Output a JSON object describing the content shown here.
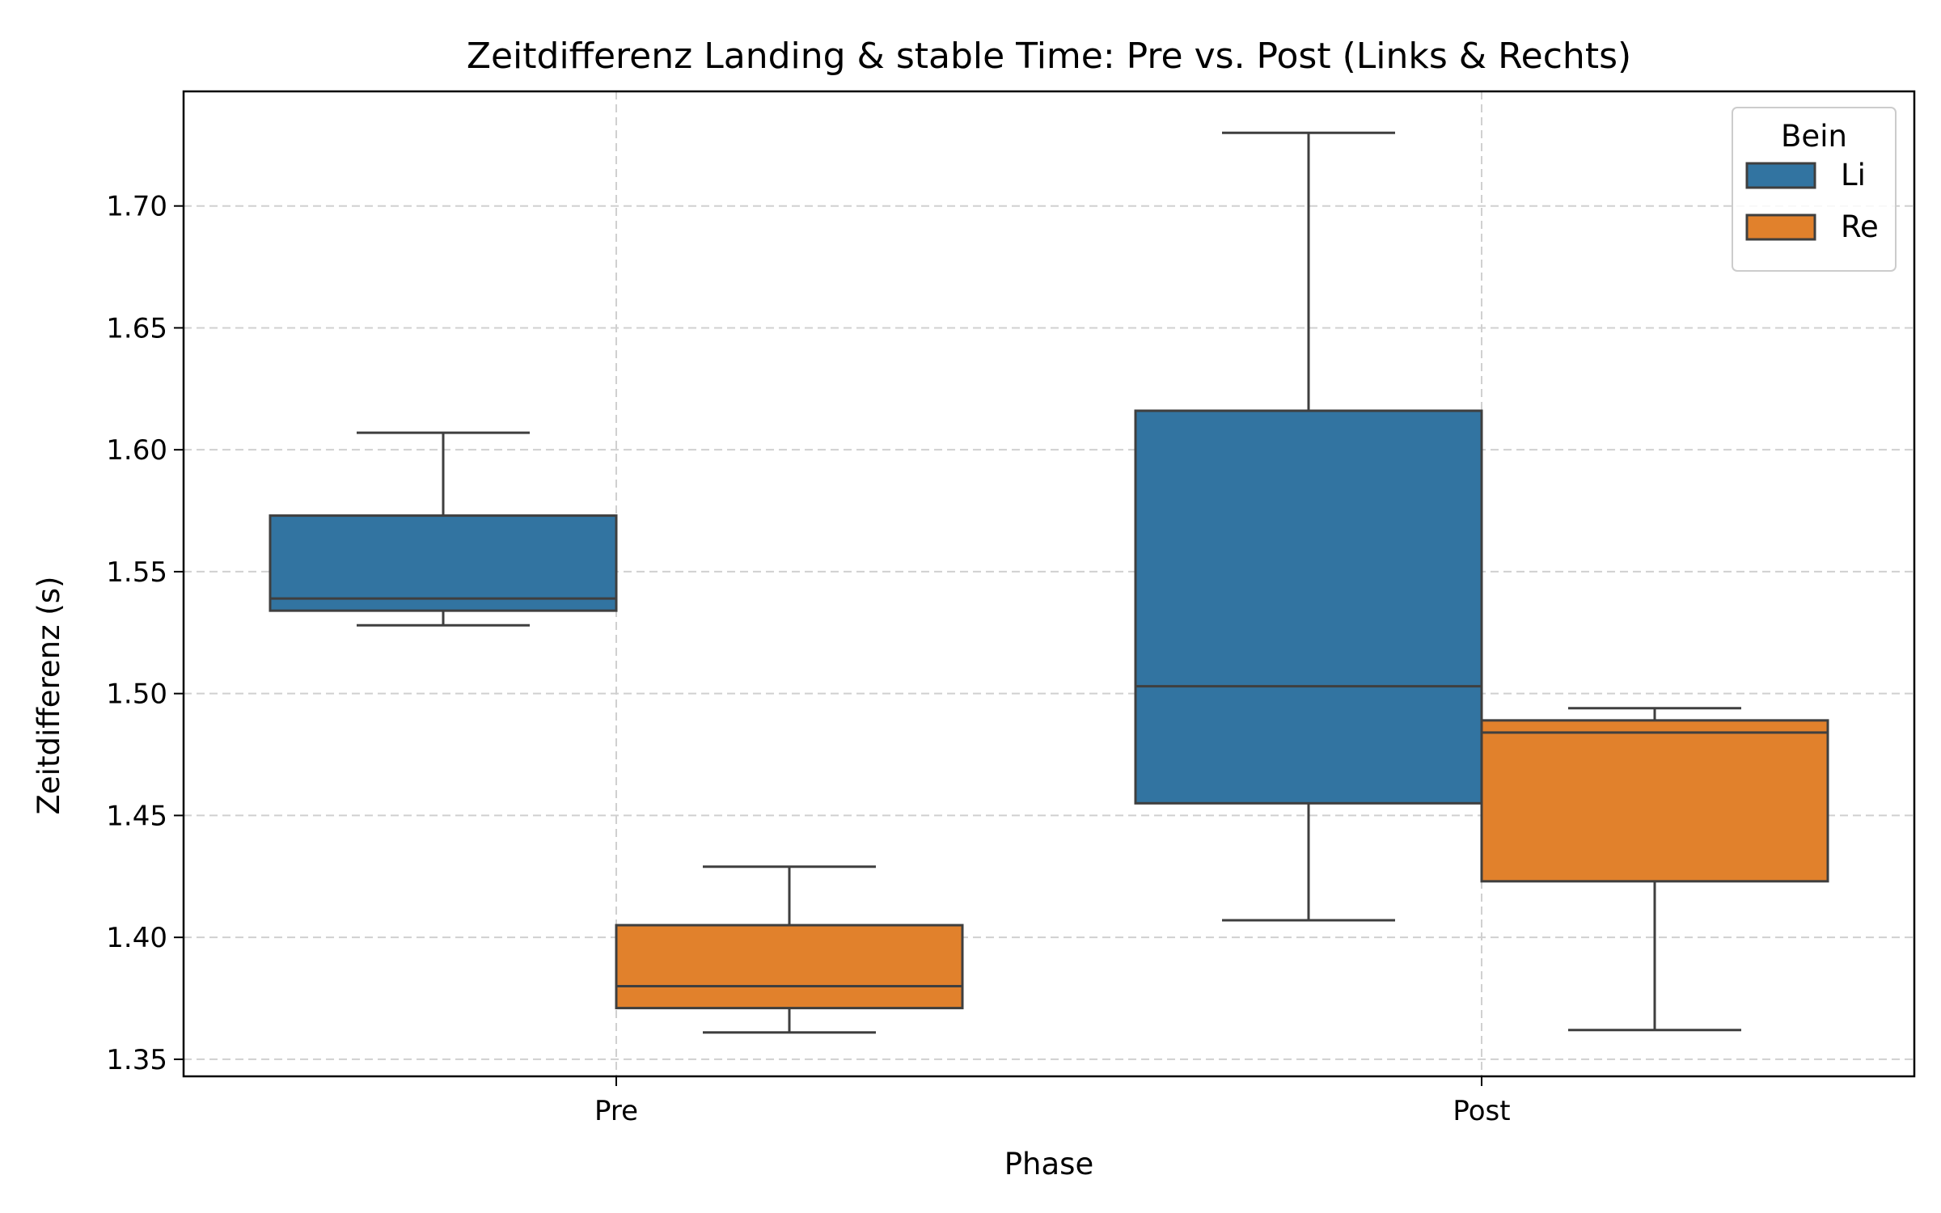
{
  "chart_data": {
    "type": "box",
    "title": "Zeitdifferenz Landing & stable Time: Pre vs. Post (Links & Rechts)",
    "xlabel": "Phase",
    "ylabel": "Zeitdifferenz (s)",
    "categories": [
      "Pre",
      "Post"
    ],
    "ylim": [
      1.343,
      1.747
    ],
    "yticks": [
      "1.35",
      "1.40",
      "1.45",
      "1.50",
      "1.55",
      "1.60",
      "1.65",
      "1.70"
    ],
    "grid": true,
    "legend": {
      "title": "Bein",
      "position": "top-right"
    },
    "series": [
      {
        "name": "Li",
        "color": "#3274a1",
        "boxes": [
          {
            "category": "Pre",
            "whisker_low": 1.528,
            "q1": 1.534,
            "median": 1.539,
            "q3": 1.573,
            "whisker_high": 1.607
          },
          {
            "category": "Post",
            "whisker_low": 1.407,
            "q1": 1.455,
            "median": 1.503,
            "q3": 1.616,
            "whisker_high": 1.73
          }
        ]
      },
      {
        "name": "Re",
        "color": "#e1812c",
        "boxes": [
          {
            "category": "Pre",
            "whisker_low": 1.361,
            "q1": 1.371,
            "median": 1.38,
            "q3": 1.405,
            "whisker_high": 1.429
          },
          {
            "category": "Post",
            "whisker_low": 1.362,
            "q1": 1.423,
            "median": 1.484,
            "q3": 1.489,
            "whisker_high": 1.494
          }
        ]
      }
    ]
  }
}
